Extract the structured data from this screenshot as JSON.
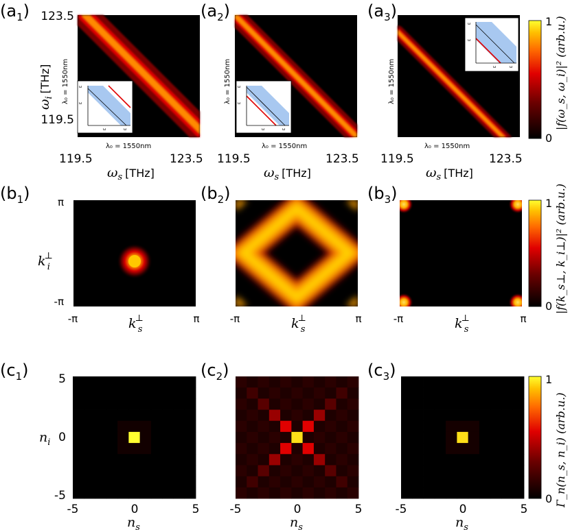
{
  "chart_data": [
    {
      "type": "heatmap",
      "panel": "a",
      "titles": [
        {
          "base": "(a",
          "sub": "1",
          "close": ")"
        },
        {
          "base": "(a",
          "sub": "2",
          "close": ")"
        },
        {
          "base": "(a",
          "sub": "3",
          "close": ")"
        }
      ],
      "xlabel": "ω",
      "xlabel_sub": "s",
      "xunit": "[THz]",
      "ylabel": "ω",
      "ylabel_sub": "i",
      "yunit": "[THz]",
      "xlim": [
        119.5,
        123.5
      ],
      "ylim": [
        119.5,
        123.5
      ],
      "x_ticks": [
        "119.5",
        "123.5"
      ],
      "y_ticks": [
        "123.5",
        "119.5"
      ],
      "reference_x_label": "λ₀ = 1550nm",
      "reference_y_label": "λ₀ = 1550nm",
      "description": "narrow anti-diagonal band ω_s + ω_i = const",
      "band_width_THz": [
        0.2,
        0.14,
        0.1
      ],
      "band_offset_THz": [
        0.25,
        0.0,
        -0.55
      ],
      "band_length_fraction": [
        1.0,
        1.0,
        0.9
      ],
      "inset_labels": [
        "ω",
        "ω",
        "ω",
        "ω"
      ],
      "colorbar": {
        "min": 0,
        "max": 1,
        "ticks": [
          "1",
          "0"
        ],
        "label": "|f(ω_s, ω_i)|² (arb.u.)"
      }
    },
    {
      "type": "heatmap",
      "panel": "b",
      "titles": [
        {
          "base": "(b",
          "sub": "1",
          "close": ")"
        },
        {
          "base": "(b",
          "sub": "2",
          "close": ")"
        },
        {
          "base": "(b",
          "sub": "3",
          "close": ")"
        }
      ],
      "xlabel": "k",
      "xlabel_sub": "s",
      "ylabel": "k",
      "ylabel_sub": "i",
      "xlim": [
        "-π",
        "π"
      ],
      "ylim": [
        "-π",
        "π"
      ],
      "x_ticks": [
        "-π",
        "π"
      ],
      "y_ticks": [
        "π",
        "-π"
      ],
      "patterns": [
        "gaussian spot at center",
        "diamond ring |k_s|+|k_i| ≈ π",
        "bright corners at (±π, ±π)"
      ],
      "colorbar": {
        "min": 0,
        "max": 1,
        "ticks": [
          "1",
          "0"
        ],
        "label": "|f(k_s⊥, k_i⊥)|² (arb.u.)"
      }
    },
    {
      "type": "heatmap",
      "panel": "c",
      "titles": [
        {
          "base": "(c",
          "sub": "1",
          "close": ")"
        },
        {
          "base": "(c",
          "sub": "2",
          "close": ")"
        },
        {
          "base": "(c",
          "sub": "3",
          "close": ")"
        }
      ],
      "xlabel": "n",
      "xlabel_sub": "s",
      "ylabel": "n",
      "ylabel_sub": "i",
      "xlim": [
        -5,
        5
      ],
      "ylim": [
        -5,
        5
      ],
      "x_ticks": [
        "-5",
        "0",
        "5"
      ],
      "y_ticks": [
        "5",
        "0",
        "-5"
      ],
      "grid_values": [
        {
          "center": 1.0,
          "neighbors": 0.05,
          "far": 0.0
        },
        {
          "center": 0.95,
          "diagonal": [
            0.55,
            0.4,
            0.25,
            0.18,
            0.12
          ],
          "background": 0.12
        },
        {
          "center": 0.95,
          "neighbors": 0.06,
          "far": 0.0
        }
      ],
      "colorbar": {
        "min": 0,
        "max": 1,
        "ticks": [
          "1",
          "0"
        ],
        "label": "Γ_n(n_s, n_i) (arb.u.)"
      }
    }
  ]
}
